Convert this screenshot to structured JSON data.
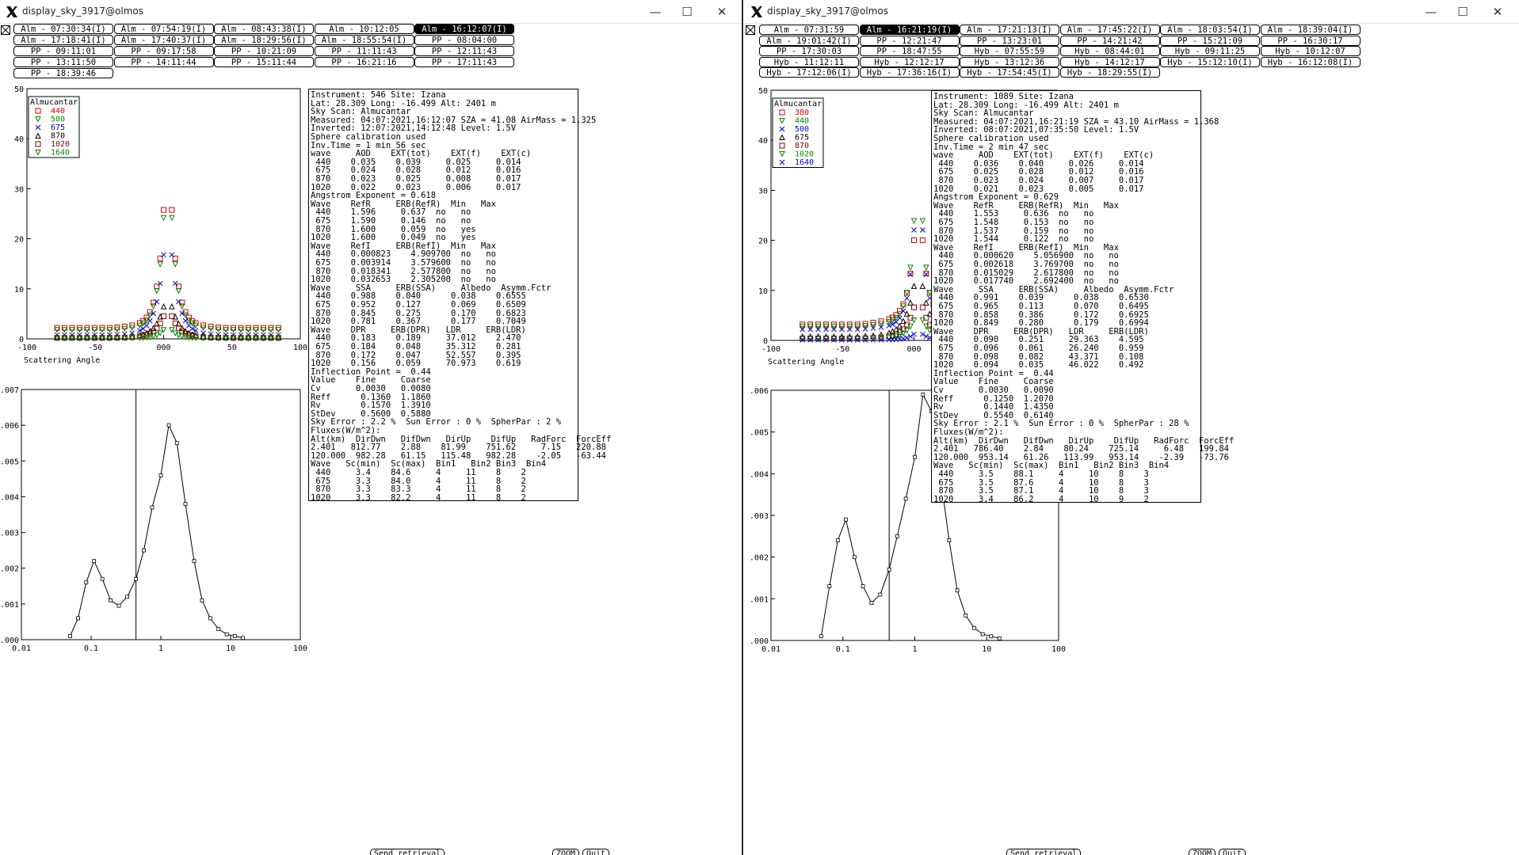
{
  "windows": [
    {
      "id": "left",
      "title": "display_sky_3917@olmos",
      "runs": [
        {
          "label": "Alm - 07:30:34(I)",
          "selected": false
        },
        {
          "label": "Alm - 07:54:19(I)",
          "selected": false
        },
        {
          "label": "Alm - 08:43:38(I)",
          "selected": false
        },
        {
          "label": "Alm - 10:12:05",
          "selected": false
        },
        {
          "label": "Alm - 16:12:07(I)",
          "selected": true
        },
        {
          "label": "Alm - 17:18:41(I)",
          "selected": false
        },
        {
          "label": "Alm - 17:40:37(I)",
          "selected": false
        },
        {
          "label": "Alm - 18:29:56(I)",
          "selected": false
        },
        {
          "label": "Alm - 18:55:54(I)",
          "selected": false
        },
        {
          "label": "PP - 08:04:00",
          "selected": false
        },
        {
          "label": "PP - 09:11:01",
          "selected": false
        },
        {
          "label": "PP - 09:17:58",
          "selected": false
        },
        {
          "label": "PP - 10:21:09",
          "selected": false
        },
        {
          "label": "PP - 11:11:43",
          "selected": false
        },
        {
          "label": "PP - 12:11:43",
          "selected": false
        },
        {
          "label": "PP - 13:11:50",
          "selected": false
        },
        {
          "label": "PP - 14:11:44",
          "selected": false
        },
        {
          "label": "PP - 15:11:44",
          "selected": false
        },
        {
          "label": "PP - 16:21:16",
          "selected": false
        },
        {
          "label": "PP - 17:11:43",
          "selected": false
        },
        {
          "label": "PP - 18:39:46",
          "selected": false
        }
      ],
      "sky_chart": {
        "type": "scatter",
        "xlabel": "Scattering Angle",
        "xlim": [
          -100,
          100
        ],
        "ylim": [
          0,
          50
        ],
        "xticks": [
          -100,
          -50,
          0,
          50,
          100
        ],
        "yticks": [
          0,
          10,
          20,
          30,
          40,
          50
        ],
        "xtick_labels": [
          "-100",
          "-50",
          "000",
          "50",
          "100"
        ],
        "legend_title": "Almucantar",
        "legend": [
          {
            "name": "440",
            "color": "#dd0000",
            "marker": "square"
          },
          {
            "name": "500",
            "color": "#008800",
            "marker": "tri-down"
          },
          {
            "name": "675",
            "color": "#0000cc",
            "marker": "x"
          },
          {
            "name": "870",
            "color": "#000000",
            "marker": "tri-up"
          },
          {
            "name": "1020",
            "color": "#880000",
            "marker": "square"
          },
          {
            "name": "1640",
            "color": "#008800",
            "marker": "tri-down"
          }
        ],
        "series": [
          {
            "name": "440",
            "peak": 44,
            "halfwidth": 4.5,
            "base": 2.2,
            "slope": 0.012
          },
          {
            "name": "500",
            "peak": 42,
            "halfwidth": 4.5,
            "base": 1.8,
            "slope": 0.012
          },
          {
            "name": "675",
            "peak": 27,
            "halfwidth": 5.5,
            "base": 0.8,
            "slope": 0.012
          },
          {
            "name": "870",
            "peak": 10,
            "halfwidth": 6,
            "base": 0.3,
            "slope": 0.01
          },
          {
            "name": "1020",
            "peak": 7,
            "halfwidth": 6,
            "base": 0.2,
            "slope": 0.01
          },
          {
            "name": "1640",
            "peak": 3,
            "halfwidth": 5,
            "base": 0.1,
            "slope": 0.01
          }
        ]
      },
      "size_chart": {
        "type": "line",
        "xscale": "log",
        "xlim": [
          0.01,
          100
        ],
        "ylim": [
          0,
          0.007
        ],
        "xtick_labels": [
          "0.01",
          "0.1",
          "1",
          "10",
          "100"
        ],
        "ytick_labels": [
          ".000",
          ".001",
          ".002",
          ".003",
          ".004",
          ".005",
          ".006",
          ".007"
        ],
        "inflection": 0.44,
        "x": [
          0.05,
          0.065,
          0.085,
          0.11,
          0.145,
          0.19,
          0.25,
          0.33,
          0.44,
          0.57,
          0.75,
          1.0,
          1.3,
          1.7,
          2.25,
          3.0,
          3.9,
          5.1,
          6.7,
          8.8,
          11.5,
          15.0
        ],
        "y": [
          0.0001,
          0.0006,
          0.0016,
          0.0022,
          0.0017,
          0.0011,
          0.00095,
          0.0012,
          0.0017,
          0.0025,
          0.0037,
          0.0046,
          0.006,
          0.0055,
          0.0038,
          0.0022,
          0.0011,
          0.0006,
          0.0003,
          0.00015,
          0.0001,
          5e-05
        ]
      },
      "info_lines": [
        "Instrument: 546 Site: Izana",
        "Lat: 28.309 Long: -16.499 Alt: 2401 m",
        "Sky Scan: Almucantar",
        "Measured: 04:07:2021,16:12:07 SZA = 41.08 AirMass = 1.325",
        "Inverted: 12:07:2021,14:12:48 Level: 1.5V",
        "Sphere calibration used",
        "Inv.Time = 1 min 56 sec",
        "wave     AOD    EXT(tot)    EXT(f)    EXT(c)",
        " 440    0.035    0.039     0.025     0.014",
        " 675    0.024    0.028     0.012     0.016",
        " 870    0.023    0.025     0.008     0.017",
        "1020    0.022    0.023     0.006     0.017",
        "Angstrom Exponent = 0.618",
        "Wave    RefR     ERB(RefR)  Min   Max",
        " 440    1.596     0.637  no   no",
        " 675    1.590     0.146  no   no",
        " 870    1.600     0.059  no   yes",
        "1020    1.600     0.049  no   yes",
        "Wave    RefI     ERB(RefI)  Min   Max",
        " 440    0.000823    4.909700  no   no",
        " 675    0.003914    3.579600  no   no",
        " 870    0.018341    2.577800  no   no",
        "1020    0.032653    2.305200  no   no",
        "Wave     SSA     ERB(SSA)     Albedo  Asymm.Fctr",
        " 440    0.988    0.040      0.038    0.6555",
        " 675    0.952    0.127      0.069    0.6509",
        " 870    0.845    0.275      0.170    0.6823",
        "1020    0.781    0.367      0.177    0.7049",
        "Wave    DPR     ERB(DPR)   LDR     ERB(LDR)",
        " 440    0.183    0.189     37.012    2.470",
        " 675    0.184    0.048     35.312    0.281",
        " 870    0.172    0.047     52.557    0.395",
        "1020    0.156    0.059     70.973    0.619",
        "Inflection Point =  0.44",
        "Value    Fine     Coarse",
        "Cv       0.0030   0.0080",
        "Reff      0.1360  1.1860",
        "Rv        0.1570  1.3910",
        "StDev     0.5600  0.5880",
        "Sky Error : 2.2 %  Sun Error : 0 %  SpherPar : 2 %",
        "Fluxes(W/m^2):",
        "Alt(km)  DirDwn   DifDwn   DirUp    DifUp   RadForc  ForcEff",
        "2.401   812.77    2.88    81.99    751.62     7.15   220.88",
        "120.000  982.28   61.15   115.48   982.28    -2.05   -63.44",
        "Wave   Sc(min)  Sc(max)  Bin1   Bin2 Bin3  Bin4",
        " 440     3.4    84.6     4     11    8    2",
        " 675     3.3    84.0     4     11    8    2",
        " 870     3.3    83.3     4     11    8    2",
        "1020     3.3    82.2     4     11    8    2"
      ],
      "buttons": [
        "Send retrieval",
        "ZOOM",
        "Quit"
      ]
    },
    {
      "id": "right",
      "title": "display_sky_3917@olmos",
      "runs": [
        {
          "label": "Alm - 07:31:59",
          "selected": false
        },
        {
          "label": "Alm - 16:21:19(I)",
          "selected": true
        },
        {
          "label": "Alm - 17:21:13(I)",
          "selected": false
        },
        {
          "label": "Alm - 17:45:22(I)",
          "selected": false
        },
        {
          "label": "Alm - 18:03:54(I)",
          "selected": false
        },
        {
          "label": "Alm - 18:39:04(I)",
          "selected": false
        },
        {
          "label": "Alm - 19:01:42(I)",
          "selected": false
        },
        {
          "label": "PP - 12:21:47",
          "selected": false
        },
        {
          "label": "PP - 13:23:01",
          "selected": false
        },
        {
          "label": "PP - 14:21:42",
          "selected": false
        },
        {
          "label": "PP - 15:21:09",
          "selected": false
        },
        {
          "label": "PP - 16:30:17",
          "selected": false
        },
        {
          "label": "PP - 17:30:03",
          "selected": false
        },
        {
          "label": "PP - 18:47:55",
          "selected": false
        },
        {
          "label": "Hyb - 07:55:59",
          "selected": false
        },
        {
          "label": "Hyb - 08:44:01",
          "selected": false
        },
        {
          "label": "Hyb - 09:11:25",
          "selected": false
        },
        {
          "label": "Hyb - 10:12:07",
          "selected": false
        },
        {
          "label": "Hyb - 11:12:11",
          "selected": false
        },
        {
          "label": "Hyb - 12:12:17",
          "selected": false
        },
        {
          "label": "Hyb - 13:12:36",
          "selected": false
        },
        {
          "label": "Hyb - 14:12:17",
          "selected": false
        },
        {
          "label": "Hyb - 15:12:10(I)",
          "selected": false
        },
        {
          "label": "Hyb - 16:12:08(I)",
          "selected": false
        },
        {
          "label": "Hyb - 17:12:06(I)",
          "selected": false
        },
        {
          "label": "Hyb - 17:36:16(I)",
          "selected": false
        },
        {
          "label": "Hyb - 17:54:45(I)",
          "selected": false
        },
        {
          "label": "Hyb - 18:29:55(I)",
          "selected": false
        }
      ],
      "sky_chart": {
        "type": "scatter",
        "xlabel": "Scattering Angle",
        "xlim": [
          -100,
          100
        ],
        "ylim": [
          0,
          50
        ],
        "xticks": [
          -100,
          -50,
          0,
          50,
          100
        ],
        "yticks": [
          0,
          10,
          20,
          30,
          40,
          50
        ],
        "xtick_labels": [
          "-100",
          "-50",
          "000",
          "50",
          "100"
        ],
        "legend_title": "Almucantar",
        "legend": [
          {
            "name": "380",
            "color": "#dd0000",
            "marker": "square"
          },
          {
            "name": "440",
            "color": "#008800",
            "marker": "tri-down"
          },
          {
            "name": "500",
            "color": "#0000cc",
            "marker": "x"
          },
          {
            "name": "675",
            "color": "#000000",
            "marker": "tri-up"
          },
          {
            "name": "870",
            "color": "#880000",
            "marker": "square"
          },
          {
            "name": "1020",
            "color": "#008800",
            "marker": "tri-down"
          },
          {
            "name": "1640",
            "color": "#0000cc",
            "marker": "x"
          }
        ],
        "series": [
          {
            "name": "380",
            "peak": 30,
            "halfwidth": 4.5,
            "base": 3.2,
            "slope": 0.012
          },
          {
            "name": "440",
            "peak": 42,
            "halfwidth": 4,
            "base": 2.8,
            "slope": 0.012
          },
          {
            "name": "500",
            "peak": 40,
            "halfwidth": 4,
            "base": 2.2,
            "slope": 0.012
          },
          {
            "name": "675",
            "peak": 16,
            "halfwidth": 6,
            "base": 0.8,
            "slope": 0.012
          },
          {
            "name": "870",
            "peak": 10,
            "halfwidth": 6,
            "base": 0.4,
            "slope": 0.01
          },
          {
            "name": "1020",
            "peak": 6,
            "halfwidth": 6,
            "base": 0.3,
            "slope": 0.01
          },
          {
            "name": "1640",
            "peak": 2,
            "halfwidth": 5,
            "base": 0.1,
            "slope": 0.01
          }
        ]
      },
      "size_chart": {
        "type": "line",
        "xscale": "log",
        "xlim": [
          0.01,
          100
        ],
        "ylim": [
          0,
          0.006
        ],
        "xtick_labels": [
          "0.01",
          "0.1",
          "1",
          "10",
          "100"
        ],
        "ytick_labels": [
          ".000",
          ".001",
          ".002",
          ".003",
          ".004",
          ".005",
          ".006"
        ],
        "inflection": 0.44,
        "x": [
          0.05,
          0.065,
          0.085,
          0.11,
          0.145,
          0.19,
          0.25,
          0.33,
          0.44,
          0.57,
          0.75,
          1.0,
          1.3,
          1.7,
          2.25,
          3.0,
          3.9,
          5.1,
          6.7,
          8.8,
          11.5,
          15.0
        ],
        "y": [
          0.0001,
          0.0013,
          0.0024,
          0.0029,
          0.002,
          0.0013,
          0.0009,
          0.0011,
          0.0017,
          0.0025,
          0.0034,
          0.0044,
          0.0059,
          0.0055,
          0.004,
          0.0024,
          0.0012,
          0.0006,
          0.0003,
          0.00015,
          0.0001,
          5e-05
        ]
      },
      "info_lines": [
        "Instrument: 1089 Site: Izana",
        "Lat: 28.309 Long: -16.499 Alt: 2401 m",
        "Sky Scan: Almucantar",
        "Measured: 04:07:2021,16:21:19 SZA = 43.10 AirMass = 1.368",
        "Inverted: 08:07:2021,07:35:50 Level: 1.5V",
        "Sphere calibration used",
        "Inv.Time = 2 min 47 sec",
        "wave     AOD    EXT(tot)    EXT(f)    EXT(c)",
        " 440    0.036    0.040     0.026     0.014",
        " 675    0.025    0.028     0.012     0.016",
        " 870    0.023    0.024     0.007     0.017",
        "1020    0.021    0.023     0.005     0.017",
        "Angstrom Exponent = 0.629",
        "Wave    RefR     ERB(RefR)  Min   Max",
        " 440    1.553     0.636  no   no",
        " 675    1.548     0.153  no   no",
        " 870    1.537     0.159  no   no",
        "1020    1.544     0.122  no   no",
        "Wave    RefI     ERB(RefI)  Min   Max",
        " 440    0.000620    5.056900  no   no",
        " 675    0.002618    3.769700  no   no",
        " 870    0.015029    2.617800  no   no",
        "1020    0.017740    2.692400  no   no",
        "Wave     SSA     ERB(SSA)     Albedo  Asymm.Fctr",
        " 440    0.991    0.039      0.038    0.6530",
        " 675    0.965    0.113      0.070    0.6495",
        " 870    0.858    0.386      0.172    0.6925",
        "1020    0.849    0.280      0.179    0.6994",
        "Wave    DPR     ERB(DPR)   LDR     ERB(LDR)",
        " 440    0.090    0.251     29.363    4.595",
        " 675    0.096    0.061     26.240    0.959",
        " 870    0.098    0.082     43.371    0.108",
        "1020    0.094    0.035     46.022    0.492",
        "Inflection Point =  0.44",
        "Value    Fine     Coarse",
        "Cv       0.0030   0.0090",
        "Reff      0.1250  1.2070",
        "Rv        0.1440  1.4350",
        "StDev     0.5540  0.6140",
        "Sky Error : 2.1 %  Sun Error : 0 %  SpherPar : 28 %",
        "Fluxes(W/m^2):",
        "Alt(km)  DirDwn   DifDwn   DirUp    DifUp   RadForc  ForcEff",
        "2.401   786.40    2.84    80.24    725.14     6.48   199.84",
        "120.000  953.14   61.26   113.99   953.14    -2.39   -73.76",
        "Wave   Sc(min)  Sc(max)  Bin1   Bin2 Bin3  Bin4",
        " 440     3.5    88.1     4     10    8    3",
        " 675     3.5    87.6     4     10    8    3",
        " 870     3.5    87.1     4     10    8    3",
        "1020     3.4    86.2     4     10    9    2"
      ],
      "buttons": [
        "Send retrieval",
        "ZOOM",
        "Quit"
      ]
    }
  ]
}
